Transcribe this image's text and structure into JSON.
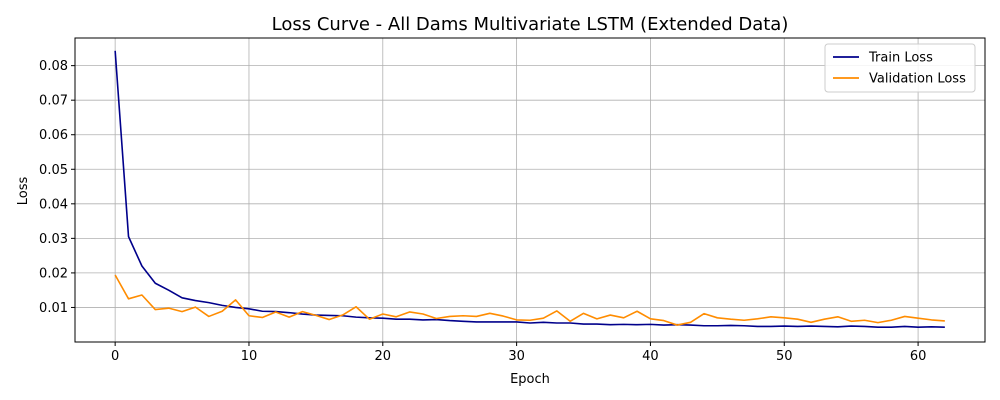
{
  "chart_data": {
    "type": "line",
    "title": "Loss Curve - All Dams Multivariate LSTM (Extended Data)",
    "xlabel": "Epoch",
    "ylabel": "Loss",
    "xlim": [
      -3,
      65
    ],
    "ylim": [
      0.0,
      0.088
    ],
    "xticks": [
      0,
      10,
      20,
      30,
      40,
      50,
      60
    ],
    "yticks": [
      0.01,
      0.02,
      0.03,
      0.04,
      0.05,
      0.06,
      0.07,
      0.08
    ],
    "xtick_labels": [
      "0",
      "10",
      "20",
      "30",
      "40",
      "50",
      "60"
    ],
    "ytick_labels": [
      "0.01",
      "0.02",
      "0.03",
      "0.04",
      "0.05",
      "0.06",
      "0.07",
      "0.08"
    ],
    "grid": true,
    "legend_position": "top-right",
    "x": [
      0,
      1,
      2,
      3,
      4,
      5,
      6,
      7,
      8,
      9,
      10,
      11,
      12,
      13,
      14,
      15,
      16,
      17,
      18,
      19,
      20,
      21,
      22,
      23,
      24,
      25,
      26,
      27,
      28,
      29,
      30,
      31,
      32,
      33,
      34,
      35,
      36,
      37,
      38,
      39,
      40,
      41,
      42,
      43,
      44,
      45,
      46,
      47,
      48,
      49,
      50,
      51,
      52,
      53,
      54,
      55,
      56,
      57,
      58,
      59,
      60,
      61,
      62
    ],
    "series": [
      {
        "name": "Train Loss",
        "color": "#00008b",
        "values": [
          0.0843,
          0.0305,
          0.022,
          0.017,
          0.015,
          0.0128,
          0.012,
          0.0114,
          0.0106,
          0.01,
          0.0096,
          0.0089,
          0.0088,
          0.0085,
          0.0081,
          0.0078,
          0.0077,
          0.0076,
          0.0072,
          0.007,
          0.0069,
          0.0066,
          0.0066,
          0.0064,
          0.0065,
          0.0062,
          0.006,
          0.0058,
          0.0058,
          0.0058,
          0.0058,
          0.0055,
          0.0057,
          0.0055,
          0.0055,
          0.0052,
          0.0052,
          0.005,
          0.0051,
          0.005,
          0.0051,
          0.0049,
          0.005,
          0.0049,
          0.0047,
          0.0047,
          0.0048,
          0.0047,
          0.0045,
          0.0045,
          0.0046,
          0.0045,
          0.0046,
          0.0045,
          0.0044,
          0.0046,
          0.0045,
          0.0043,
          0.0043,
          0.0045,
          0.0043,
          0.0044,
          0.0043
        ]
      },
      {
        "name": "Validation Loss",
        "color": "#ff8c00",
        "values": [
          0.0194,
          0.0125,
          0.0136,
          0.0094,
          0.0098,
          0.0088,
          0.0101,
          0.0074,
          0.0089,
          0.0122,
          0.0076,
          0.0071,
          0.0087,
          0.0072,
          0.0088,
          0.0077,
          0.0065,
          0.0078,
          0.0102,
          0.0066,
          0.0081,
          0.0073,
          0.0087,
          0.0081,
          0.0068,
          0.0074,
          0.0076,
          0.0074,
          0.0083,
          0.0075,
          0.0064,
          0.0063,
          0.0069,
          0.009,
          0.006,
          0.0083,
          0.0067,
          0.0078,
          0.007,
          0.0089,
          0.0067,
          0.0062,
          0.0049,
          0.0057,
          0.0082,
          0.007,
          0.0066,
          0.0063,
          0.0067,
          0.0073,
          0.007,
          0.0066,
          0.0057,
          0.0066,
          0.0073,
          0.006,
          0.0063,
          0.0056,
          0.0063,
          0.0074,
          0.0069,
          0.0064,
          0.0061
        ]
      }
    ]
  }
}
